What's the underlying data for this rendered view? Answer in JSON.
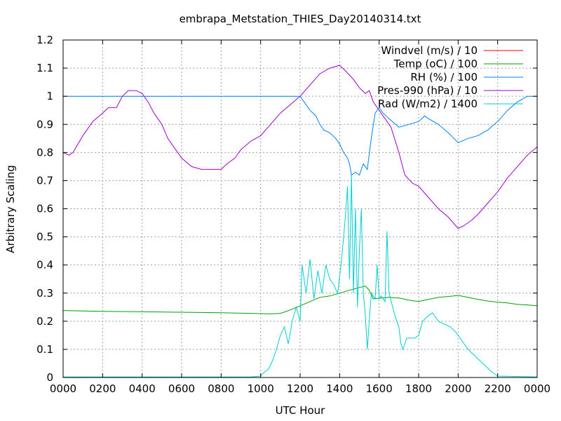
{
  "chart_data": {
    "type": "line",
    "title": "embrapa_Metstation_THIES_Day20140314.txt",
    "xlabel": "UTC Hour",
    "ylabel": "Arbitrary Scaling",
    "xlim": [
      0,
      24
    ],
    "ylim": [
      0,
      1.2
    ],
    "x_ticks": [
      {
        "value": 0,
        "label": "0000"
      },
      {
        "value": 2,
        "label": "0200"
      },
      {
        "value": 4,
        "label": "0400"
      },
      {
        "value": 6,
        "label": "0600"
      },
      {
        "value": 8,
        "label": "0800"
      },
      {
        "value": 10,
        "label": "1000"
      },
      {
        "value": 12,
        "label": "1200"
      },
      {
        "value": 14,
        "label": "1400"
      },
      {
        "value": 16,
        "label": "1600"
      },
      {
        "value": 18,
        "label": "1800"
      },
      {
        "value": 20,
        "label": "2000"
      },
      {
        "value": 22,
        "label": "2200"
      },
      {
        "value": 24,
        "label": "0000"
      }
    ],
    "y_ticks": [
      {
        "value": 0,
        "label": "0"
      },
      {
        "value": 0.1,
        "label": "0.1"
      },
      {
        "value": 0.2,
        "label": "0.2"
      },
      {
        "value": 0.3,
        "label": "0.3"
      },
      {
        "value": 0.4,
        "label": "0.4"
      },
      {
        "value": 0.5,
        "label": "0.5"
      },
      {
        "value": 0.6,
        "label": "0.6"
      },
      {
        "value": 0.7,
        "label": "0.7"
      },
      {
        "value": 0.8,
        "label": "0.8"
      },
      {
        "value": 0.9,
        "label": "0.9"
      },
      {
        "value": 1.0,
        "label": "1"
      },
      {
        "value": 1.1,
        "label": "1.1"
      },
      {
        "value": 1.2,
        "label": "1.2"
      }
    ],
    "grid": true,
    "legend_position": "top-right",
    "series": [
      {
        "name": "Windvel (m/s) / 10",
        "color": "#ff0000",
        "points": []
      },
      {
        "name": "Temp (oC) / 100",
        "color": "#00a000",
        "points": [
          [
            0,
            0.238
          ],
          [
            2,
            0.235
          ],
          [
            4,
            0.234
          ],
          [
            6,
            0.232
          ],
          [
            8,
            0.23
          ],
          [
            9.5,
            0.228
          ],
          [
            10.5,
            0.226
          ],
          [
            11,
            0.228
          ],
          [
            11.5,
            0.24
          ],
          [
            12,
            0.255
          ],
          [
            12.5,
            0.27
          ],
          [
            13,
            0.285
          ],
          [
            13.5,
            0.29
          ],
          [
            14,
            0.3
          ],
          [
            14.5,
            0.31
          ],
          [
            15,
            0.32
          ],
          [
            15.3,
            0.325
          ],
          [
            15.5,
            0.31
          ],
          [
            15.7,
            0.28
          ],
          [
            16,
            0.282
          ],
          [
            16.5,
            0.285
          ],
          [
            17,
            0.283
          ],
          [
            17.5,
            0.275
          ],
          [
            18,
            0.27
          ],
          [
            18.5,
            0.278
          ],
          [
            19,
            0.285
          ],
          [
            19.5,
            0.288
          ],
          [
            20,
            0.292
          ],
          [
            20.5,
            0.285
          ],
          [
            21,
            0.278
          ],
          [
            21.5,
            0.272
          ],
          [
            22,
            0.268
          ],
          [
            22.5,
            0.265
          ],
          [
            23,
            0.26
          ],
          [
            23.5,
            0.258
          ],
          [
            24,
            0.255
          ]
        ]
      },
      {
        "name": "RH (%) / 100",
        "color": "#0080ff",
        "points": [
          [
            0,
            1.0
          ],
          [
            12,
            1.0
          ],
          [
            12.2,
            0.98
          ],
          [
            12.5,
            0.95
          ],
          [
            12.8,
            0.93
          ],
          [
            13,
            0.9
          ],
          [
            13.2,
            0.88
          ],
          [
            13.5,
            0.87
          ],
          [
            13.8,
            0.85
          ],
          [
            14,
            0.83
          ],
          [
            14.2,
            0.8
          ],
          [
            14.4,
            0.78
          ],
          [
            14.5,
            0.76
          ],
          [
            14.6,
            0.72
          ],
          [
            14.8,
            0.73
          ],
          [
            15,
            0.72
          ],
          [
            15.2,
            0.76
          ],
          [
            15.4,
            0.74
          ],
          [
            15.6,
            0.85
          ],
          [
            15.8,
            0.94
          ],
          [
            16,
            0.96
          ],
          [
            16.2,
            0.94
          ],
          [
            16.5,
            0.92
          ],
          [
            17,
            0.89
          ],
          [
            17.5,
            0.9
          ],
          [
            18,
            0.91
          ],
          [
            18.3,
            0.93
          ],
          [
            18.5,
            0.92
          ],
          [
            19,
            0.9
          ],
          [
            19.5,
            0.87
          ],
          [
            20,
            0.835
          ],
          [
            20.5,
            0.85
          ],
          [
            21,
            0.86
          ],
          [
            21.5,
            0.88
          ],
          [
            22,
            0.91
          ],
          [
            22.5,
            0.95
          ],
          [
            23,
            0.98
          ],
          [
            23.5,
            1.0
          ],
          [
            24,
            1.0
          ]
        ]
      },
      {
        "name": "Pres-990 (hPa) / 10",
        "color": "#a000d0",
        "points": [
          [
            0,
            0.8
          ],
          [
            0.3,
            0.79
          ],
          [
            0.5,
            0.8
          ],
          [
            1,
            0.86
          ],
          [
            1.5,
            0.91
          ],
          [
            2,
            0.94
          ],
          [
            2.3,
            0.96
          ],
          [
            2.7,
            0.96
          ],
          [
            3,
            1.0
          ],
          [
            3.3,
            1.02
          ],
          [
            3.7,
            1.02
          ],
          [
            4,
            1.01
          ],
          [
            4.3,
            0.98
          ],
          [
            4.6,
            0.94
          ],
          [
            5,
            0.9
          ],
          [
            5.3,
            0.85
          ],
          [
            5.6,
            0.82
          ],
          [
            6,
            0.78
          ],
          [
            6.5,
            0.75
          ],
          [
            7,
            0.74
          ],
          [
            7.5,
            0.74
          ],
          [
            8,
            0.74
          ],
          [
            8.3,
            0.76
          ],
          [
            8.7,
            0.78
          ],
          [
            9,
            0.81
          ],
          [
            9.5,
            0.84
          ],
          [
            10,
            0.86
          ],
          [
            10.5,
            0.9
          ],
          [
            11,
            0.94
          ],
          [
            11.5,
            0.97
          ],
          [
            12,
            1.0
          ],
          [
            12.5,
            1.04
          ],
          [
            13,
            1.08
          ],
          [
            13.5,
            1.1
          ],
          [
            14,
            1.11
          ],
          [
            14.3,
            1.09
          ],
          [
            14.7,
            1.06
          ],
          [
            15,
            1.03
          ],
          [
            15.3,
            1.01
          ],
          [
            15.5,
            1.02
          ],
          [
            15.7,
            0.98
          ],
          [
            16,
            0.95
          ],
          [
            16.3,
            0.92
          ],
          [
            16.6,
            0.89
          ],
          [
            17,
            0.8
          ],
          [
            17.3,
            0.72
          ],
          [
            17.7,
            0.69
          ],
          [
            18,
            0.68
          ],
          [
            18.5,
            0.64
          ],
          [
            19,
            0.6
          ],
          [
            19.5,
            0.57
          ],
          [
            20,
            0.53
          ],
          [
            20.3,
            0.54
          ],
          [
            20.7,
            0.56
          ],
          [
            21,
            0.58
          ],
          [
            21.5,
            0.62
          ],
          [
            22,
            0.66
          ],
          [
            22.5,
            0.71
          ],
          [
            23,
            0.75
          ],
          [
            23.5,
            0.79
          ],
          [
            24,
            0.82
          ]
        ]
      },
      {
        "name": "Rad (W/m2) / 1400",
        "color": "#00d0d0",
        "points": [
          [
            0,
            0.002
          ],
          [
            9.5,
            0.002
          ],
          [
            10.0,
            0.005
          ],
          [
            10.2,
            0.02
          ],
          [
            10.4,
            0.03
          ],
          [
            10.6,
            0.06
          ],
          [
            10.8,
            0.1
          ],
          [
            11.0,
            0.15
          ],
          [
            11.2,
            0.18
          ],
          [
            11.4,
            0.12
          ],
          [
            11.6,
            0.2
          ],
          [
            11.8,
            0.25
          ],
          [
            12.0,
            0.2
          ],
          [
            12.1,
            0.4
          ],
          [
            12.3,
            0.3
          ],
          [
            12.5,
            0.42
          ],
          [
            12.7,
            0.28
          ],
          [
            12.9,
            0.38
          ],
          [
            13.1,
            0.3
          ],
          [
            13.3,
            0.4
          ],
          [
            13.5,
            0.35
          ],
          [
            13.7,
            0.33
          ],
          [
            13.9,
            0.3
          ],
          [
            14.1,
            0.42
          ],
          [
            14.3,
            0.58
          ],
          [
            14.4,
            0.68
          ],
          [
            14.5,
            0.35
          ],
          [
            14.6,
            0.72
          ],
          [
            14.7,
            0.3
          ],
          [
            14.8,
            0.6
          ],
          [
            14.9,
            0.25
          ],
          [
            15.0,
            0.45
          ],
          [
            15.1,
            0.6
          ],
          [
            15.2,
            0.3
          ],
          [
            15.3,
            0.22
          ],
          [
            15.4,
            0.1
          ],
          [
            15.5,
            0.2
          ],
          [
            15.6,
            0.3
          ],
          [
            15.8,
            0.28
          ],
          [
            15.9,
            0.4
          ],
          [
            16.0,
            0.28
          ],
          [
            16.1,
            0.29
          ],
          [
            16.3,
            0.27
          ],
          [
            16.4,
            0.52
          ],
          [
            16.5,
            0.3
          ],
          [
            16.8,
            0.22
          ],
          [
            17.0,
            0.18
          ],
          [
            17.1,
            0.12
          ],
          [
            17.2,
            0.1
          ],
          [
            17.4,
            0.14
          ],
          [
            17.6,
            0.14
          ],
          [
            17.8,
            0.14
          ],
          [
            18.0,
            0.15
          ],
          [
            18.2,
            0.2
          ],
          [
            18.5,
            0.22
          ],
          [
            18.7,
            0.23
          ],
          [
            19.0,
            0.2
          ],
          [
            19.3,
            0.19
          ],
          [
            19.6,
            0.18
          ],
          [
            19.9,
            0.16
          ],
          [
            20.2,
            0.13
          ],
          [
            20.5,
            0.1
          ],
          [
            20.8,
            0.08
          ],
          [
            21.1,
            0.06
          ],
          [
            21.4,
            0.04
          ],
          [
            21.7,
            0.02
          ],
          [
            22.0,
            0.005
          ],
          [
            24,
            0.002
          ]
        ]
      }
    ]
  }
}
